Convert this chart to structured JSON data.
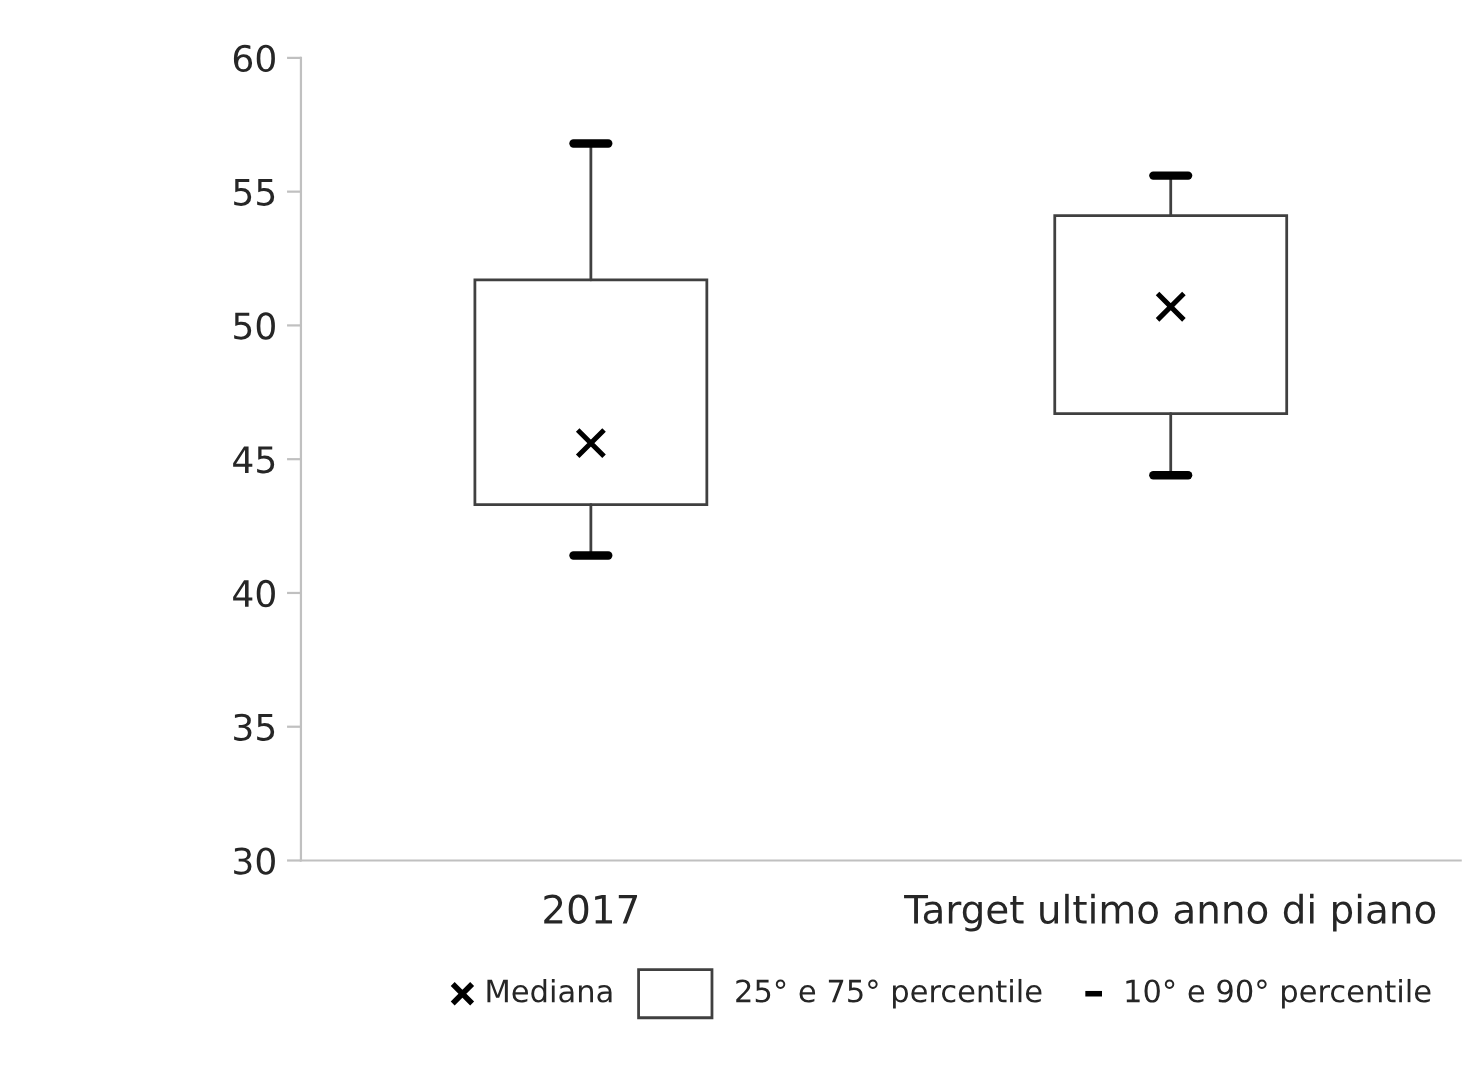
{
  "chart_data": {
    "type": "box",
    "categories": [
      "2017",
      "Target ultimo anno di piano"
    ],
    "boxes": [
      {
        "low": 41.4,
        "q1": 43.3,
        "median": 45.6,
        "q3": 51.7,
        "high": 56.8
      },
      {
        "low": 44.4,
        "q1": 46.7,
        "median": 50.7,
        "q3": 54.1,
        "high": 55.6
      }
    ],
    "ylim": [
      30,
      60
    ],
    "yticks": [
      30,
      35,
      40,
      45,
      50,
      55,
      60
    ],
    "grid": false,
    "annotations": [
      "Mediana",
      "25° e 75° percentile",
      "10° e 90° percentile"
    ]
  }
}
